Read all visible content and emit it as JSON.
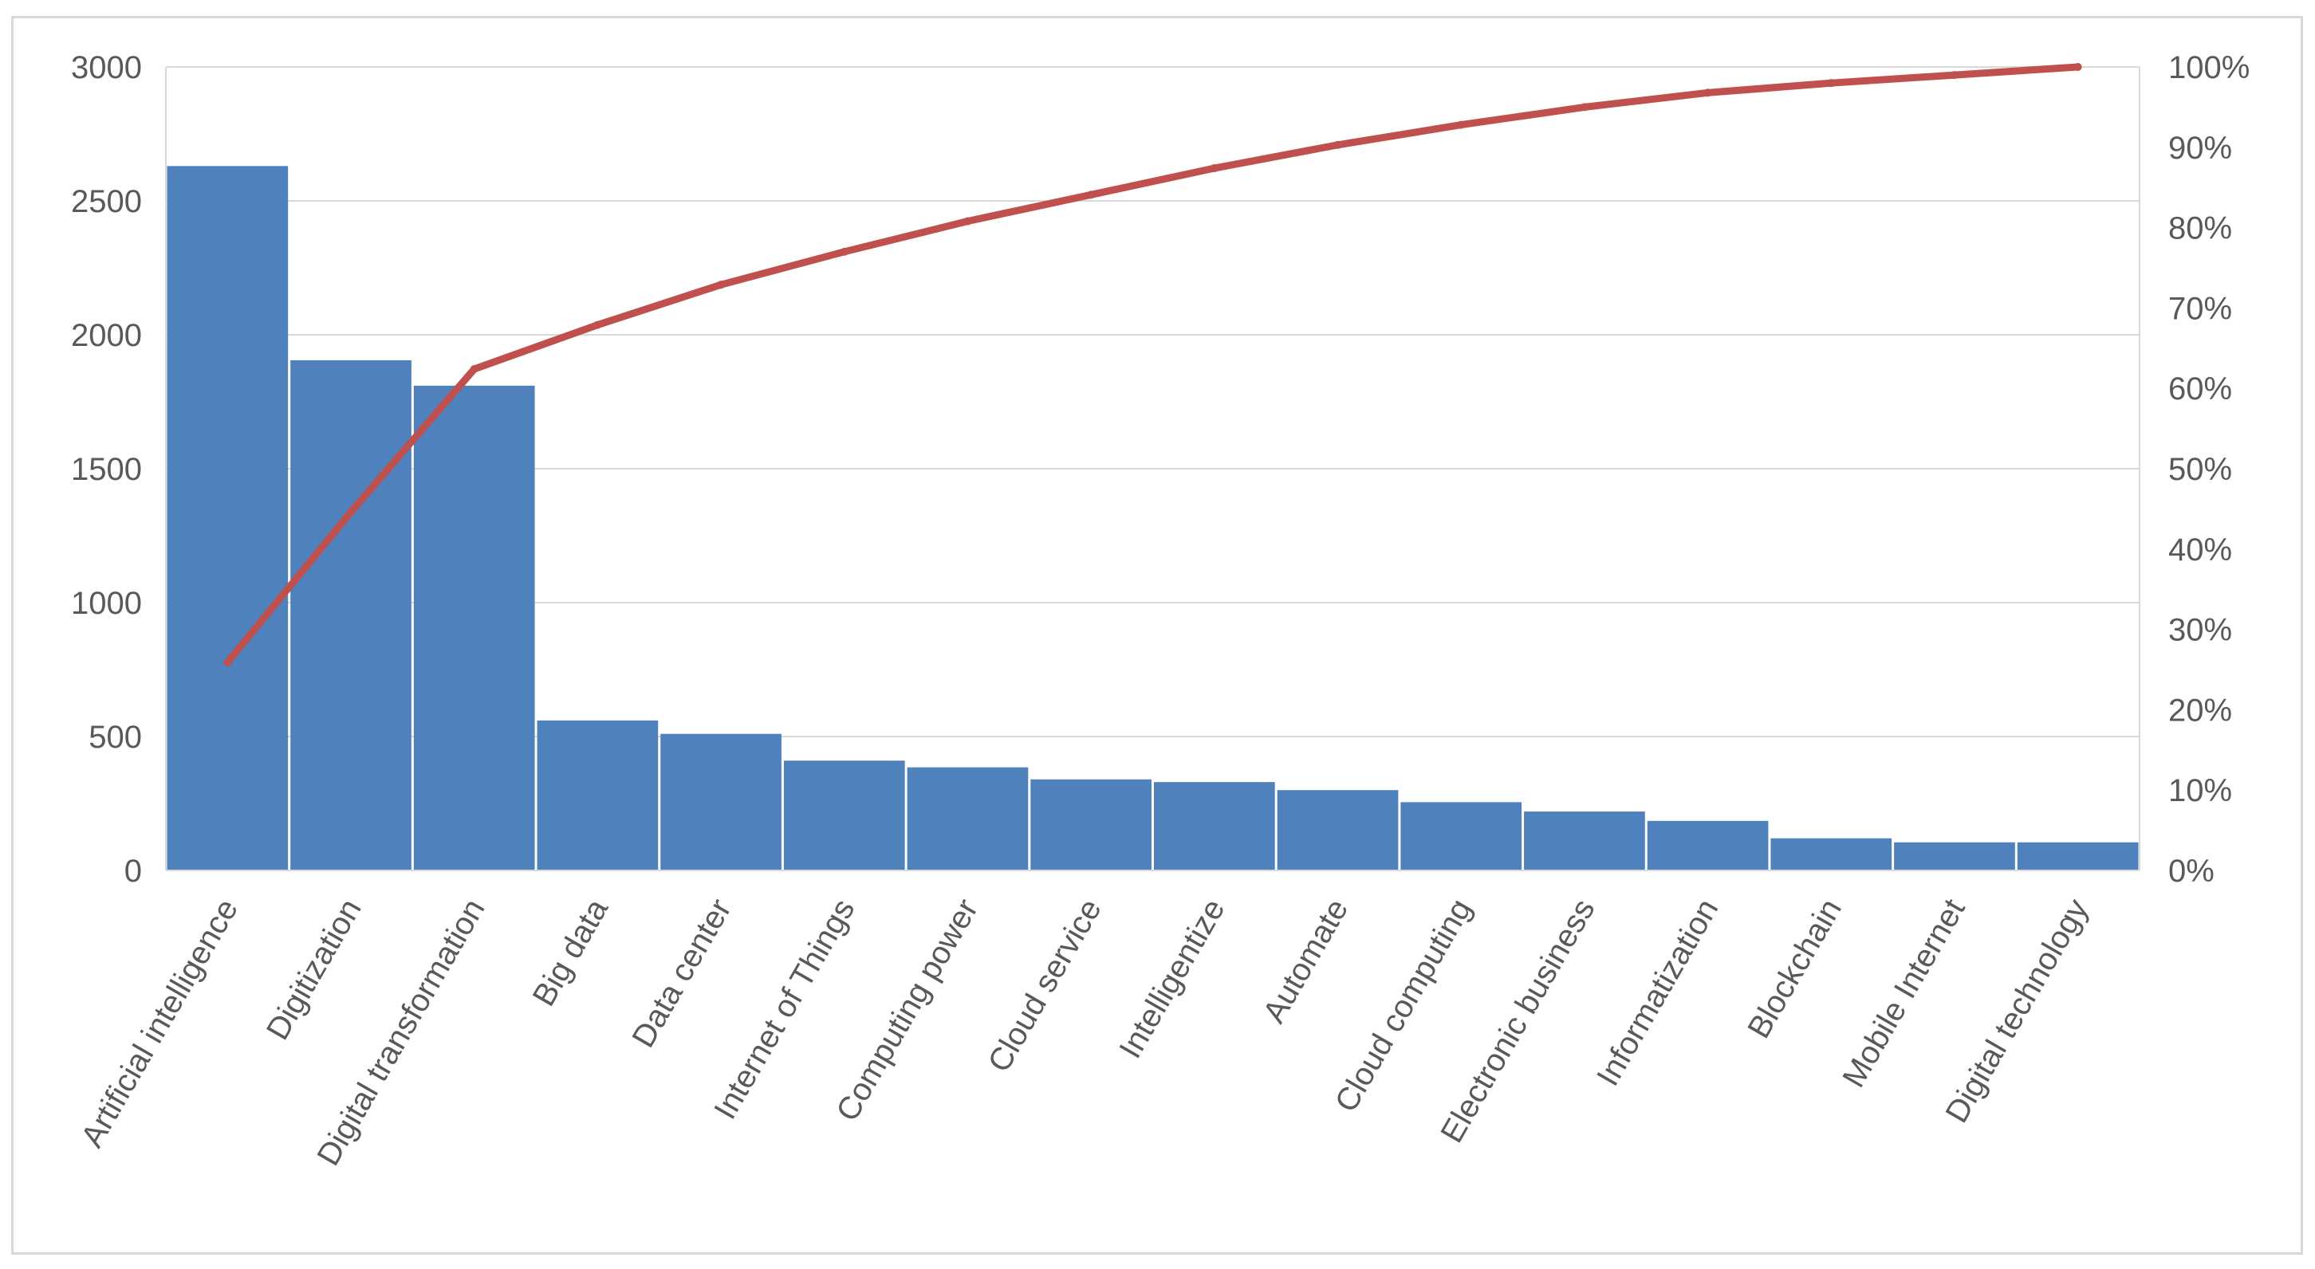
{
  "chart_data": {
    "type": "bar",
    "categories": [
      "Artificial intelligence",
      "Digitization",
      "Digital transformation",
      "Big data",
      "Data center",
      "Internet of Things",
      "Computing power",
      "Cloud service",
      "Intelligentize",
      "Automate",
      "Cloud computing",
      "Electronic business",
      "Informatization",
      "Blockchain",
      "Mobile Internet",
      "Digital technology"
    ],
    "series": [
      {
        "type": "bar",
        "axis": "left",
        "values": [
          2630,
          1905,
          1810,
          560,
          510,
          410,
          385,
          340,
          330,
          300,
          255,
          220,
          185,
          120,
          105,
          105
        ]
      },
      {
        "type": "line",
        "axis": "right",
        "values": [
          25.9,
          44.6,
          62.4,
          67.9,
          72.9,
          77.0,
          80.8,
          84.1,
          87.4,
          90.3,
          92.8,
          95.0,
          96.8,
          98.0,
          99.0,
          100.0
        ]
      }
    ],
    "y_left_ticks": [
      "0",
      "500",
      "1000",
      "1500",
      "2000",
      "2500",
      "3000"
    ],
    "y_right_ticks": [
      "0%",
      "10%",
      "20%",
      "30%",
      "40%",
      "50%",
      "60%",
      "70%",
      "80%",
      "90%",
      "100%"
    ],
    "ylim_left": [
      0,
      3000
    ],
    "ylim_right": [
      0,
      100
    ],
    "grid": true,
    "legend": "none",
    "colors": {
      "bar": "#4f81bd",
      "line": "#c0504d",
      "grid": "#d9d9d9",
      "text": "#595959"
    }
  }
}
